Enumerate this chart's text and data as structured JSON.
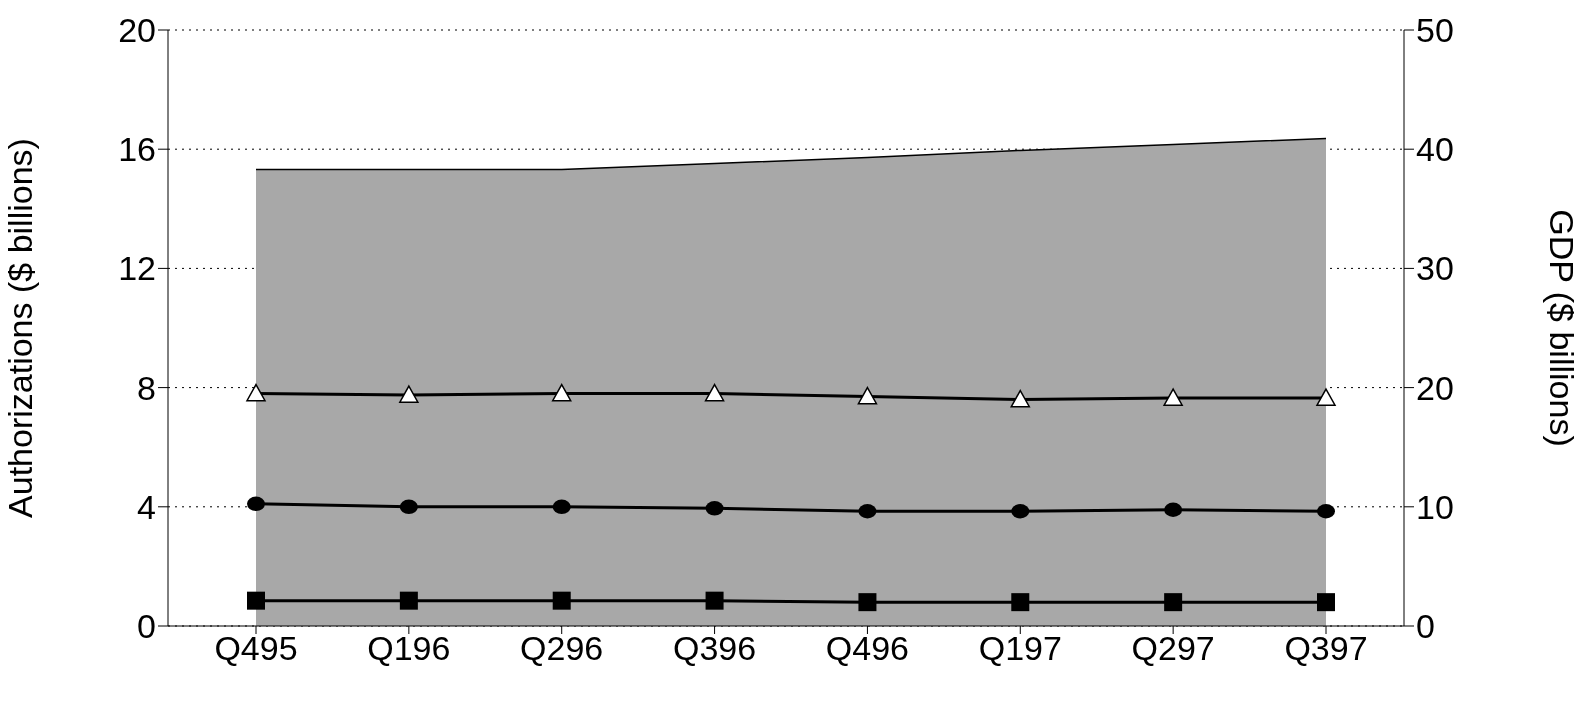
{
  "chart_data": {
    "type": "line",
    "ylabel": "Authorizations ($ billions)",
    "y2label": "GDP ($ billions)",
    "categories": [
      "Q495",
      "Q196",
      "Q296",
      "Q396",
      "Q496",
      "Q197",
      "Q297",
      "Q397"
    ],
    "series": [
      {
        "type": "area",
        "axis": "y2",
        "color": "#a8a8a8",
        "values": [
          38.3,
          38.3,
          38.3,
          38.8,
          39.3,
          39.9,
          40.4,
          40.9
        ]
      },
      {
        "color": "#000000",
        "marker": "triangle",
        "values": [
          7.8,
          7.75,
          7.8,
          7.8,
          7.7,
          7.6,
          7.65,
          7.65
        ]
      },
      {
        "color": "#000000",
        "marker": "circle",
        "values": [
          4.1,
          4.0,
          4.0,
          3.95,
          3.85,
          3.85,
          3.9,
          3.85
        ]
      },
      {
        "color": "#000000",
        "marker": "square",
        "values": [
          0.85,
          0.85,
          0.85,
          0.85,
          0.8,
          0.8,
          0.8,
          0.8
        ]
      }
    ],
    "ylim": [
      0,
      20
    ],
    "yticks": [
      0,
      4,
      8,
      12,
      16,
      20
    ],
    "y2lim": [
      0,
      50
    ],
    "y2ticks": [
      0,
      10,
      20,
      30,
      40,
      50
    ],
    "grid": "y",
    "line_style": "solid",
    "legend": false
  }
}
